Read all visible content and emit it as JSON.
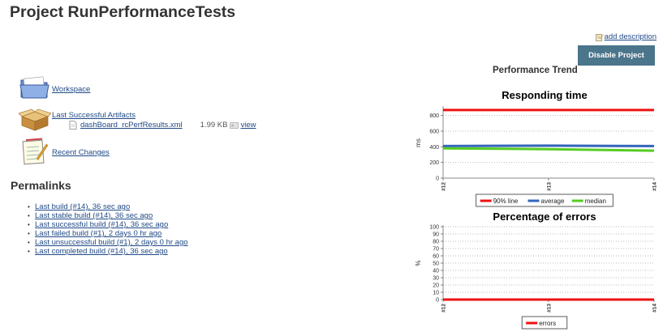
{
  "page": {
    "title": "Project RunPerformanceTests",
    "add_description": "add description",
    "disable_button": "Disable Project",
    "perf_trend": "Performance Trend"
  },
  "sidebar": {
    "workspace": "Workspace",
    "last_artifacts": "Last Successful Artifacts",
    "artifact": {
      "name": "dashBoard_rcPerfResults.xml",
      "size": "1.99 KB",
      "view": "view"
    },
    "recent_changes": "Recent Changes"
  },
  "permalinks": {
    "title": "Permalinks",
    "items": [
      "Last build (#14), 36 sec ago",
      "Last stable build (#14), 36 sec ago",
      "Last successful build (#14), 36 sec ago",
      "Last failed build (#1), 2 days 0 hr ago",
      "Last unsuccessful build (#1), 2 days 0 hr ago",
      "Last completed build (#14), 36 sec ago"
    ]
  },
  "chart_data": [
    {
      "type": "line",
      "title": "Responding time",
      "ylabel": "ms",
      "xlabel": "",
      "categories": [
        "#12",
        "#13",
        "#14"
      ],
      "ylim": [
        0,
        900
      ],
      "yticks": [
        0,
        200,
        400,
        600,
        800
      ],
      "grid": true,
      "legend_position": "bottom",
      "series": [
        {
          "name": "90% line",
          "color": "#ee1111",
          "values": [
            870,
            870,
            870
          ]
        },
        {
          "name": "average",
          "color": "#3366bb",
          "values": [
            410,
            415,
            410
          ]
        },
        {
          "name": "median",
          "color": "#55cc22",
          "values": [
            380,
            370,
            350
          ]
        }
      ]
    },
    {
      "type": "line",
      "title": "Percentage of errors",
      "ylabel": "%",
      "xlabel": "",
      "categories": [
        "#12",
        "#13",
        "#14"
      ],
      "ylim": [
        0,
        100
      ],
      "yticks": [
        0,
        10,
        20,
        30,
        40,
        50,
        60,
        70,
        80,
        90,
        100
      ],
      "grid": true,
      "legend_position": "bottom",
      "series": [
        {
          "name": "errors",
          "color": "#ee1111",
          "values": [
            0,
            0,
            0
          ]
        }
      ]
    }
  ]
}
